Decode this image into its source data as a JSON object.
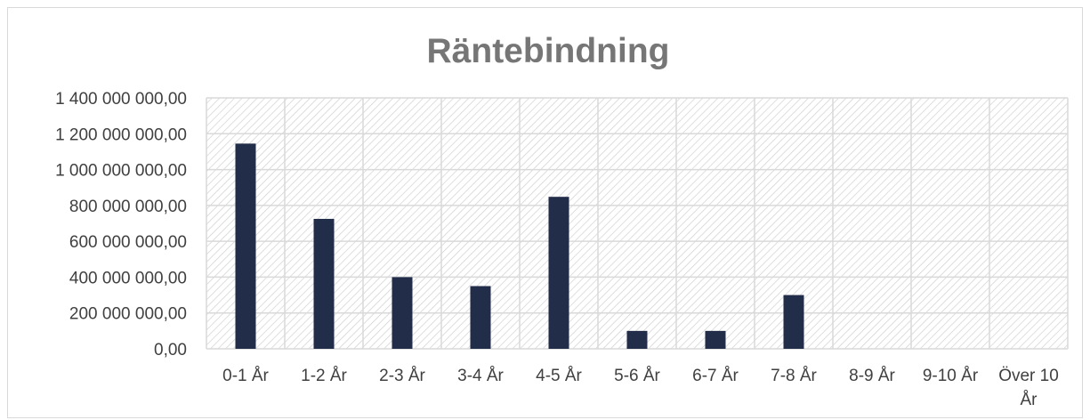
{
  "chart_data": {
    "type": "bar",
    "title": "Räntebindning",
    "xlabel": "",
    "ylabel": "",
    "categories": [
      "0-1 År",
      "1-2 År",
      "2-3 År",
      "3-4 År",
      "4-5 År",
      "5-6 År",
      "6-7 År",
      "7-8 År",
      "8-9 År",
      "9-10 År",
      "Över 10 År"
    ],
    "values": [
      1145000000,
      725000000,
      400000000,
      350000000,
      848000000,
      100000000,
      100000000,
      300000000,
      0,
      0,
      0
    ],
    "ylim": [
      0,
      1400000000
    ],
    "yticks": [
      0,
      200000000,
      400000000,
      600000000,
      800000000,
      1000000000,
      1200000000,
      1400000000
    ],
    "ytick_labels": [
      "0,00",
      "200 000 000,00",
      "400 000 000,00",
      "600 000 000,00",
      "800 000 000,00",
      "1 000 000 000,00",
      "1 200 000 000,00",
      "1 400 000 000,00"
    ],
    "grid": true,
    "legend": "none",
    "colors": {
      "bar": "#222d4a",
      "grid": "#d9d9d9",
      "hatch": "#d0d0d0",
      "title": "#767676",
      "text": "#404040"
    }
  }
}
